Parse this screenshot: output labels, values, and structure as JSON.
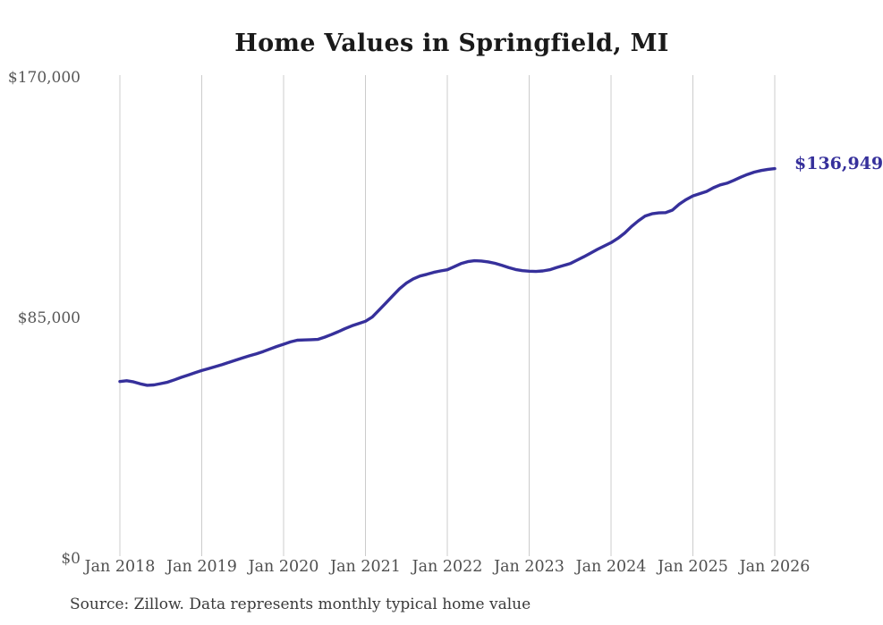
{
  "figure": {
    "title": "Home Values in Springfield, MI",
    "end_value_label": "$136,949",
    "source_note": "Source: Zillow. Data represents monthly typical home value"
  },
  "colors": {
    "background": "#ffffff",
    "line": "#36309b",
    "end_label": "#36309b",
    "grid": "#cccccc",
    "axis_label": "#575757",
    "title_text": "#1a1a1a",
    "source_text": "#3a3a3a"
  },
  "chart_data": {
    "type": "line",
    "title": "Home Values in Springfield, MI",
    "xlabel": "",
    "ylabel": "",
    "ylim": [
      0,
      170000
    ],
    "y_tick_labels": [
      "$0",
      "$85,000",
      "$170,000"
    ],
    "x_tick_labels": [
      "Jan 2018",
      "Jan 2019",
      "Jan 2020",
      "Jan 2021",
      "Jan 2022",
      "Jan 2023",
      "Jan 2024",
      "Jan 2025",
      "Jan 2026"
    ],
    "grid": "vertical-only",
    "legend": "none",
    "x_start": "2018-01",
    "x_interval": "monthly",
    "series": [
      {
        "name": "Typical home value",
        "final_value": 136949,
        "values": [
          61700,
          62000,
          61600,
          60900,
          60400,
          60500,
          61000,
          61500,
          62300,
          63200,
          64000,
          64800,
          65600,
          66300,
          67000,
          67700,
          68500,
          69300,
          70100,
          70800,
          71500,
          72300,
          73200,
          74100,
          74900,
          75700,
          76300,
          76400,
          76500,
          76600,
          77400,
          78300,
          79300,
          80400,
          81400,
          82200,
          83000,
          84500,
          87000,
          89500,
          92000,
          94500,
          96500,
          98000,
          99000,
          99600,
          100300,
          100800,
          101200,
          102300,
          103400,
          104100,
          104400,
          104300,
          104000,
          103500,
          102800,
          102000,
          101300,
          100900,
          100700,
          100600,
          100800,
          101200,
          102000,
          102700,
          103400,
          104600,
          105800,
          107100,
          108400,
          109600,
          110800,
          112300,
          114200,
          116500,
          118500,
          120200,
          121000,
          121300,
          121400,
          122300,
          124400,
          126000,
          127300,
          128100,
          128900,
          130200,
          131200,
          131800,
          132800,
          133900,
          134900,
          135700,
          136300,
          136700,
          136949
        ]
      }
    ]
  }
}
